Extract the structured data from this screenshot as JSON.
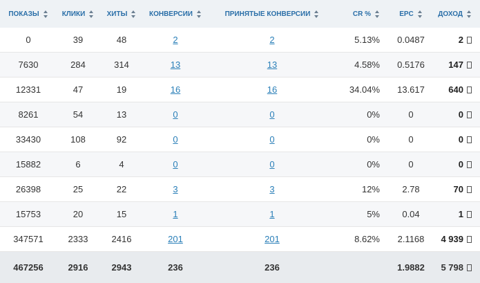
{
  "headers": [
    {
      "label": "ПОКАЗЫ"
    },
    {
      "label": "КЛИКИ"
    },
    {
      "label": "ХИТЫ"
    },
    {
      "label": "КОНВЕРСИИ"
    },
    {
      "label": "ПРИНЯТЫЕ КОНВЕРСИИ"
    },
    {
      "label": "CR %"
    },
    {
      "label": "EPC"
    },
    {
      "label": "ДОХОД"
    }
  ],
  "rows": [
    {
      "shows": "0",
      "clicks": "39",
      "hits": "48",
      "conv": "2",
      "accepted": "2",
      "cr": "5.13%",
      "epc": "0.0487",
      "income": "2"
    },
    {
      "shows": "7630",
      "clicks": "284",
      "hits": "314",
      "conv": "13",
      "accepted": "13",
      "cr": "4.58%",
      "epc": "0.5176",
      "income": "147"
    },
    {
      "shows": "12331",
      "clicks": "47",
      "hits": "19",
      "conv": "16",
      "accepted": "16",
      "cr": "34.04%",
      "epc": "13.617",
      "income": "640"
    },
    {
      "shows": "8261",
      "clicks": "54",
      "hits": "13",
      "conv": "0",
      "accepted": "0",
      "cr": "0%",
      "epc": "0",
      "income": "0"
    },
    {
      "shows": "33430",
      "clicks": "108",
      "hits": "92",
      "conv": "0",
      "accepted": "0",
      "cr": "0%",
      "epc": "0",
      "income": "0"
    },
    {
      "shows": "15882",
      "clicks": "6",
      "hits": "4",
      "conv": "0",
      "accepted": "0",
      "cr": "0%",
      "epc": "0",
      "income": "0"
    },
    {
      "shows": "26398",
      "clicks": "25",
      "hits": "22",
      "conv": "3",
      "accepted": "3",
      "cr": "12%",
      "epc": "2.78",
      "income": "70"
    },
    {
      "shows": "15753",
      "clicks": "20",
      "hits": "15",
      "conv": "1",
      "accepted": "1",
      "cr": "5%",
      "epc": "0.04",
      "income": "1"
    },
    {
      "shows": "347571",
      "clicks": "2333",
      "hits": "2416",
      "conv": "201",
      "accepted": "201",
      "cr": "8.62%",
      "epc": "2.1168",
      "income": "4 939"
    }
  ],
  "totals": {
    "shows": "467256",
    "clicks": "2916",
    "hits": "2943",
    "conv": "236",
    "accepted": "236",
    "cr": "",
    "epc": "1.9882",
    "income": "5 798"
  },
  "currency_icon": "currency-box-icon",
  "colors": {
    "header_bg": "#eef2f5",
    "header_text": "#2a6fa8",
    "link": "#2a7fb8",
    "footer_bg": "#e8ebee"
  }
}
